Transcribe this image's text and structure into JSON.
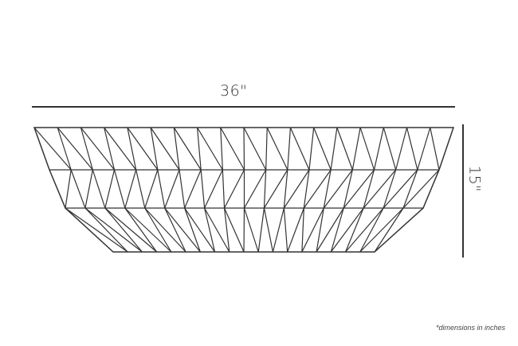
{
  "dimensions": {
    "width_label": "36\"",
    "height_label": "15\""
  },
  "note": "*dimensions in inches",
  "colors": {
    "line": "#333333",
    "background": "#ffffff"
  }
}
